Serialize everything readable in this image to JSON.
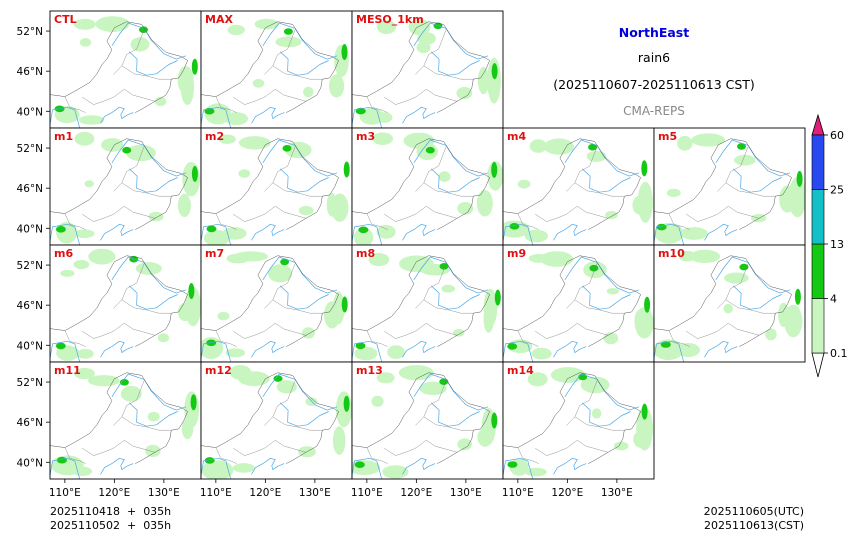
{
  "chart_data": {
    "type": "heatmap",
    "title": "NorthEast",
    "variable": "rain6",
    "period": "(2025110607-2025110613 CST)",
    "model": "CMA-REPS",
    "panels": [
      "CTL",
      "MAX",
      "MESO_1km",
      "m1",
      "m2",
      "m3",
      "m4",
      "m5",
      "m6",
      "m7",
      "m8",
      "m9",
      "m10",
      "m11",
      "m12",
      "m13",
      "m14"
    ],
    "lat_ticks": [
      "52°N",
      "46°N",
      "40°N"
    ],
    "lon_ticks": [
      "110°E",
      "120°E",
      "130°E"
    ],
    "lat_range": [
      37.5,
      55.0
    ],
    "lon_range": [
      107.0,
      137.5
    ],
    "colorbar": {
      "levels": [
        "0.1",
        "4",
        "13",
        "25",
        "60"
      ],
      "level_values": [
        0.1,
        4,
        13,
        25,
        60
      ],
      "colors": [
        "#c8f5c0",
        "#14c814",
        "#14c0c8",
        "#2848f0"
      ],
      "under_color": "#ffffff",
      "over_color": "#e0207c"
    },
    "footer_left": [
      "2025110418  +  035h",
      "2025110502  +  035h"
    ],
    "footer_right": [
      "2025110605(UTC)",
      "2025110613(CST)"
    ]
  }
}
